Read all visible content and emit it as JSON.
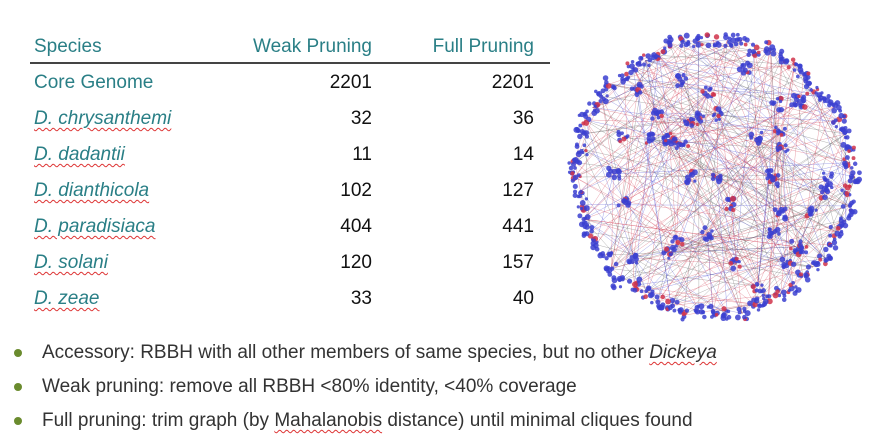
{
  "table": {
    "headers": [
      "Species",
      "Weak Pruning",
      "Full Pruning"
    ],
    "rows": [
      {
        "species": "Core Genome",
        "weak": "2201",
        "full": "2201"
      },
      {
        "species": "D. chrysanthemi",
        "weak": "32",
        "full": "36"
      },
      {
        "species": "D. dadantii",
        "weak": "11",
        "full": "14"
      },
      {
        "species": "D. dianthicola",
        "weak": "102",
        "full": "127"
      },
      {
        "species": "D. paradisiaca",
        "weak": "404",
        "full": "441"
      },
      {
        "species": "D. solani",
        "weak": "120",
        "full": "157"
      },
      {
        "species": "D. zeae",
        "weak": "33",
        "full": "40"
      }
    ]
  },
  "bullets": [
    {
      "pre": "Accessory: RBBH with all other members of same species, but no other ",
      "em": "Dickeya",
      "post": ""
    },
    {
      "pre": "Weak pruning: remove all RBBH <80% identity, <40% coverage",
      "em": "",
      "post": ""
    },
    {
      "pre": "Full pruning: trim graph (by ",
      "em": "Mahalanobis",
      "post": " distance) until minimal cliques found"
    }
  ],
  "colors": {
    "header_teal": "#2a7f86",
    "bullet_green": "#6a8b2e",
    "node_blue": "#3b3fd0",
    "edge_red": "#d0334a"
  }
}
